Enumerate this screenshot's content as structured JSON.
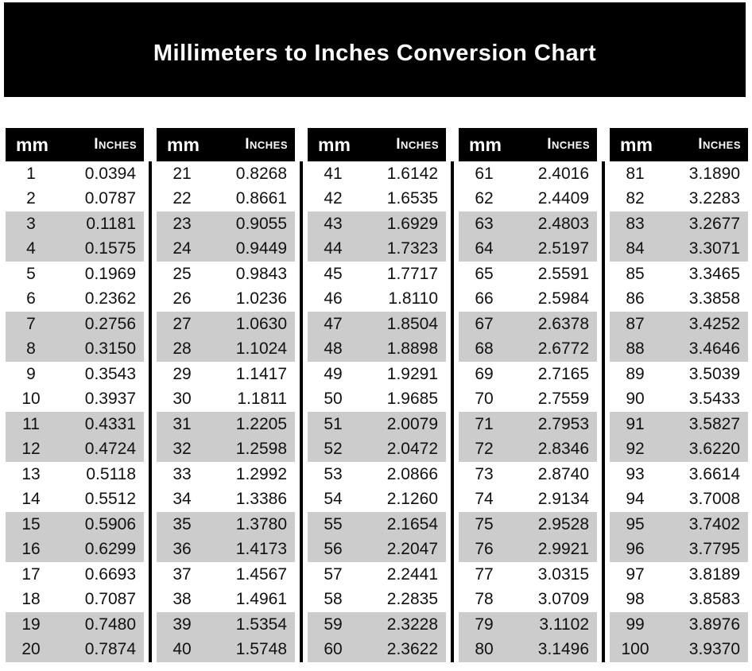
{
  "title": "Millimeters to Inches Conversion Chart",
  "colors": {
    "banner_bg": "#000000",
    "header_bg": "#000000",
    "header_text": "#ffffff",
    "stripe": "#cccccc",
    "body_text": "#111111"
  },
  "chart_data": {
    "type": "table",
    "title": "Millimeters to Inches Conversion Chart",
    "columns": [
      "mm",
      "Inches"
    ],
    "layout": "5 side-by-side column groups of 20 rows; rows shaded gray in alternating pairs (rows 3-4, 7-8, 11-12, 15-16, 19-20 of each group); black vertical rules between groups",
    "groups": [
      [
        [
          "1",
          "0.0394"
        ],
        [
          "2",
          "0.0787"
        ],
        [
          "3",
          "0.1181"
        ],
        [
          "4",
          "0.1575"
        ],
        [
          "5",
          "0.1969"
        ],
        [
          "6",
          "0.2362"
        ],
        [
          "7",
          "0.2756"
        ],
        [
          "8",
          "0.3150"
        ],
        [
          "9",
          "0.3543"
        ],
        [
          "10",
          "0.3937"
        ],
        [
          "11",
          "0.4331"
        ],
        [
          "12",
          "0.4724"
        ],
        [
          "13",
          "0.5118"
        ],
        [
          "14",
          "0.5512"
        ],
        [
          "15",
          "0.5906"
        ],
        [
          "16",
          "0.6299"
        ],
        [
          "17",
          "0.6693"
        ],
        [
          "18",
          "0.7087"
        ],
        [
          "19",
          "0.7480"
        ],
        [
          "20",
          "0.7874"
        ]
      ],
      [
        [
          "21",
          "0.8268"
        ],
        [
          "22",
          "0.8661"
        ],
        [
          "23",
          "0.9055"
        ],
        [
          "24",
          "0.9449"
        ],
        [
          "25",
          "0.9843"
        ],
        [
          "26",
          "1.0236"
        ],
        [
          "27",
          "1.0630"
        ],
        [
          "28",
          "1.1024"
        ],
        [
          "29",
          "1.1417"
        ],
        [
          "30",
          "1.1811"
        ],
        [
          "31",
          "1.2205"
        ],
        [
          "32",
          "1.2598"
        ],
        [
          "33",
          "1.2992"
        ],
        [
          "34",
          "1.3386"
        ],
        [
          "35",
          "1.3780"
        ],
        [
          "36",
          "1.4173"
        ],
        [
          "37",
          "1.4567"
        ],
        [
          "38",
          "1.4961"
        ],
        [
          "39",
          "1.5354"
        ],
        [
          "40",
          "1.5748"
        ]
      ],
      [
        [
          "41",
          "1.6142"
        ],
        [
          "42",
          "1.6535"
        ],
        [
          "43",
          "1.6929"
        ],
        [
          "44",
          "1.7323"
        ],
        [
          "45",
          "1.7717"
        ],
        [
          "46",
          "1.8110"
        ],
        [
          "47",
          "1.8504"
        ],
        [
          "48",
          "1.8898"
        ],
        [
          "49",
          "1.9291"
        ],
        [
          "50",
          "1.9685"
        ],
        [
          "51",
          "2.0079"
        ],
        [
          "52",
          "2.0472"
        ],
        [
          "53",
          "2.0866"
        ],
        [
          "54",
          "2.1260"
        ],
        [
          "55",
          "2.1654"
        ],
        [
          "56",
          "2.2047"
        ],
        [
          "57",
          "2.2441"
        ],
        [
          "58",
          "2.2835"
        ],
        [
          "59",
          "2.3228"
        ],
        [
          "60",
          "2.3622"
        ]
      ],
      [
        [
          "61",
          "2.4016"
        ],
        [
          "62",
          "2.4409"
        ],
        [
          "63",
          "2.4803"
        ],
        [
          "64",
          "2.5197"
        ],
        [
          "65",
          "2.5591"
        ],
        [
          "66",
          "2.5984"
        ],
        [
          "67",
          "2.6378"
        ],
        [
          "68",
          "2.6772"
        ],
        [
          "69",
          "2.7165"
        ],
        [
          "70",
          "2.7559"
        ],
        [
          "71",
          "2.7953"
        ],
        [
          "72",
          "2.8346"
        ],
        [
          "73",
          "2.8740"
        ],
        [
          "74",
          "2.9134"
        ],
        [
          "75",
          "2.9528"
        ],
        [
          "76",
          "2.9921"
        ],
        [
          "77",
          "3.0315"
        ],
        [
          "78",
          "3.0709"
        ],
        [
          "79",
          "3.1102"
        ],
        [
          "80",
          "3.1496"
        ]
      ],
      [
        [
          "81",
          "3.1890"
        ],
        [
          "82",
          "3.2283"
        ],
        [
          "83",
          "3.2677"
        ],
        [
          "84",
          "3.3071"
        ],
        [
          "85",
          "3.3465"
        ],
        [
          "86",
          "3.3858"
        ],
        [
          "87",
          "3.4252"
        ],
        [
          "88",
          "3.4646"
        ],
        [
          "89",
          "3.5039"
        ],
        [
          "90",
          "3.5433"
        ],
        [
          "91",
          "3.5827"
        ],
        [
          "92",
          "3.6220"
        ],
        [
          "93",
          "3.6614"
        ],
        [
          "94",
          "3.7008"
        ],
        [
          "95",
          "3.7402"
        ],
        [
          "96",
          "3.7795"
        ],
        [
          "97",
          "3.8189"
        ],
        [
          "98",
          "3.8583"
        ],
        [
          "99",
          "3.8976"
        ],
        [
          "100",
          "3.9370"
        ]
      ]
    ]
  }
}
